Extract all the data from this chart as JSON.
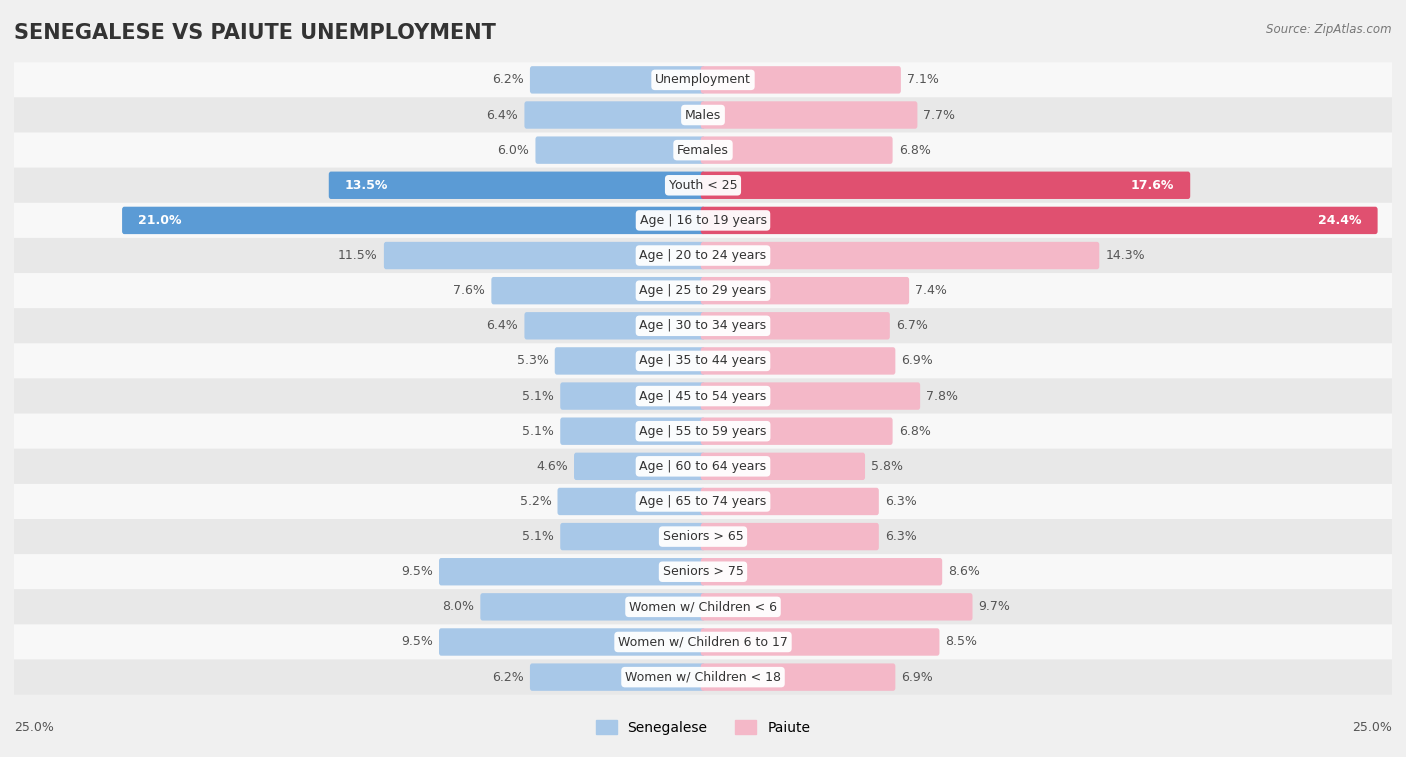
{
  "title": "SENEGALESE VS PAIUTE UNEMPLOYMENT",
  "source": "Source: ZipAtlas.com",
  "categories": [
    "Unemployment",
    "Males",
    "Females",
    "Youth < 25",
    "Age | 16 to 19 years",
    "Age | 20 to 24 years",
    "Age | 25 to 29 years",
    "Age | 30 to 34 years",
    "Age | 35 to 44 years",
    "Age | 45 to 54 years",
    "Age | 55 to 59 years",
    "Age | 60 to 64 years",
    "Age | 65 to 74 years",
    "Seniors > 65",
    "Seniors > 75",
    "Women w/ Children < 6",
    "Women w/ Children 6 to 17",
    "Women w/ Children < 18"
  ],
  "senegalese": [
    6.2,
    6.4,
    6.0,
    13.5,
    21.0,
    11.5,
    7.6,
    6.4,
    5.3,
    5.1,
    5.1,
    4.6,
    5.2,
    5.1,
    9.5,
    8.0,
    9.5,
    6.2
  ],
  "paiute": [
    7.1,
    7.7,
    6.8,
    17.6,
    24.4,
    14.3,
    7.4,
    6.7,
    6.9,
    7.8,
    6.8,
    5.8,
    6.3,
    6.3,
    8.6,
    9.7,
    8.5,
    6.9
  ],
  "senegalese_color_normal": "#a8c8e8",
  "paiute_color_normal": "#f4b8c8",
  "senegalese_color_highlight": "#5b9bd5",
  "paiute_color_highlight": "#e05070",
  "highlight_rows": [
    3,
    4
  ],
  "bg_color": "#f0f0f0",
  "row_color_even": "#f8f8f8",
  "row_color_odd": "#e8e8e8",
  "xlim": 25.0,
  "bar_height": 0.62,
  "title_fontsize": 15,
  "label_fontsize": 9,
  "value_fontsize": 9
}
